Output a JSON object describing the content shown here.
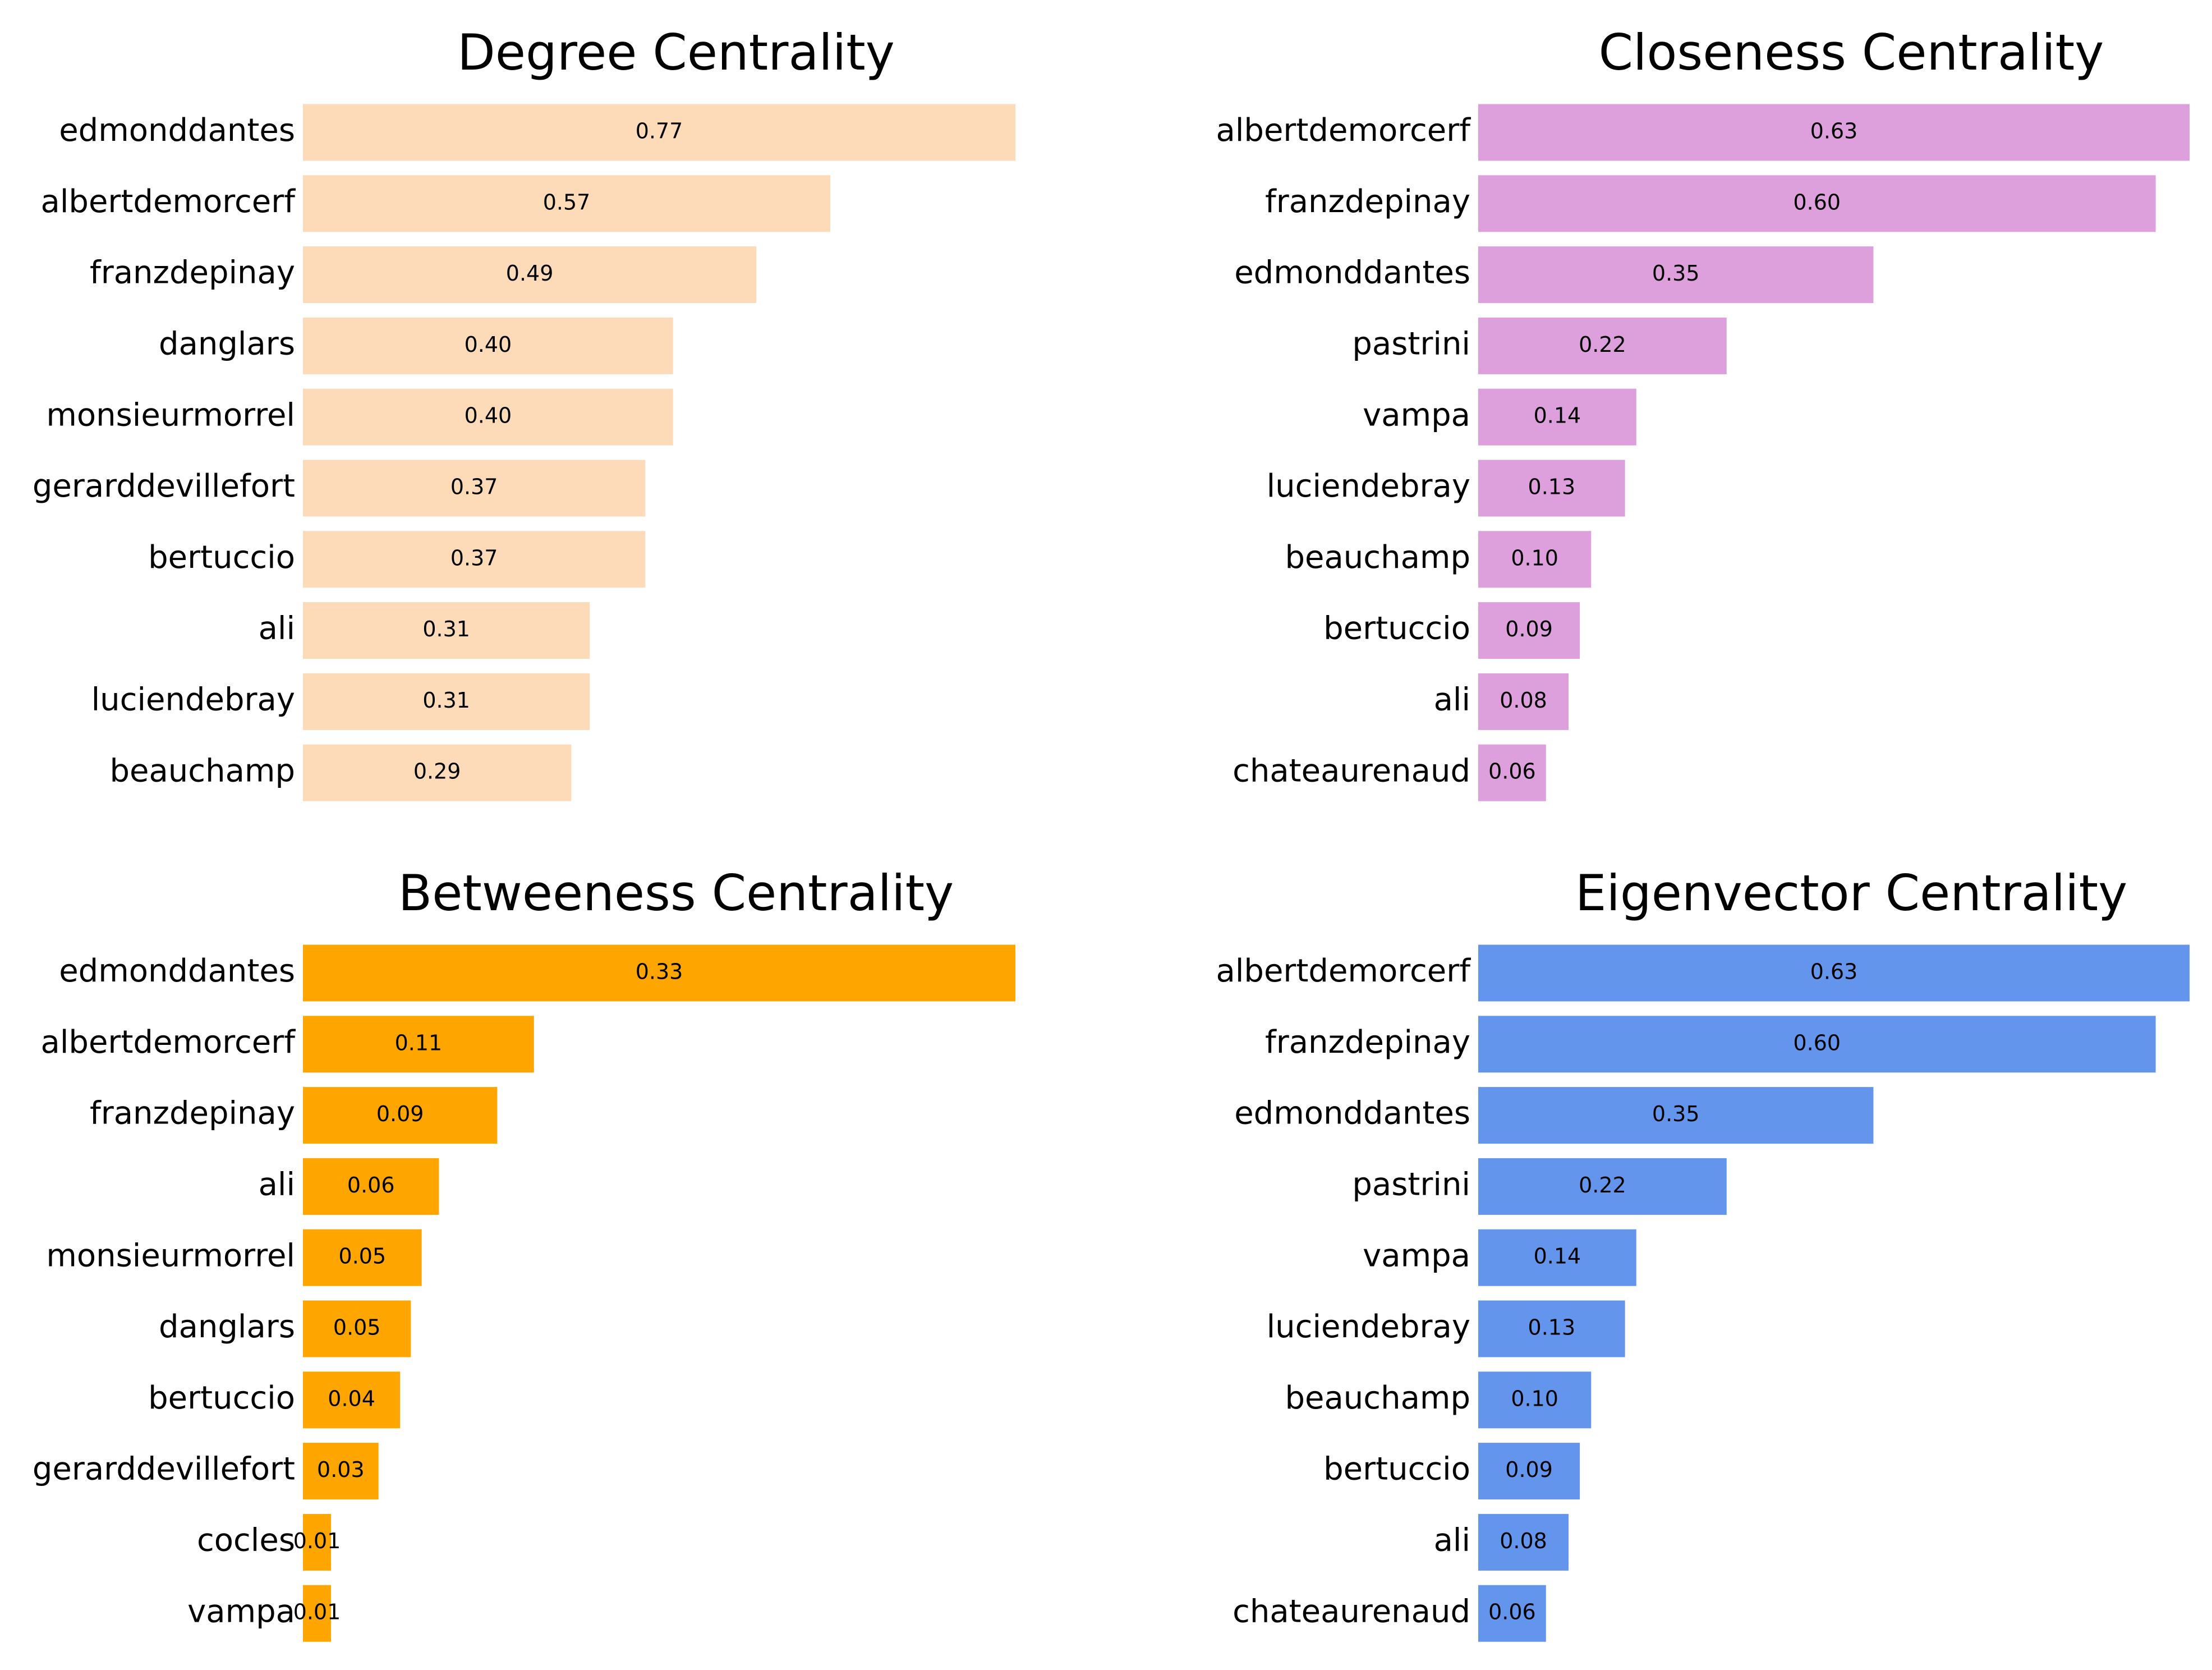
{
  "chart_data": [
    {
      "type": "bar",
      "orientation": "horizontal",
      "title": "Degree Centrality",
      "color": "#FDDBB9",
      "categories": [
        "edmonddantes",
        "albertdemorcerf",
        "franzdepinay",
        "danglars",
        "monsieurmorrel",
        "gerarddevillefort",
        "bertuccio",
        "ali",
        "luciendebray",
        "beauchamp"
      ],
      "values": [
        0.77,
        0.57,
        0.49,
        0.4,
        0.4,
        0.37,
        0.37,
        0.31,
        0.31,
        0.29
      ],
      "value_labels": [
        "0.77",
        "0.57",
        "0.49",
        "0.40",
        "0.40",
        "0.37",
        "0.37",
        "0.31",
        "0.31",
        "0.29"
      ],
      "xlim": [
        0,
        0.77
      ],
      "grid": false,
      "axes_visible": false
    },
    {
      "type": "bar",
      "orientation": "horizontal",
      "title": "Closeness Centrality",
      "color": "#DDA0DD",
      "categories": [
        "albertdemorcerf",
        "franzdepinay",
        "edmonddantes",
        "pastrini",
        "vampa",
        "luciendebray",
        "beauchamp",
        "bertuccio",
        "ali",
        "chateaurenaud"
      ],
      "values": [
        0.63,
        0.6,
        0.35,
        0.22,
        0.14,
        0.13,
        0.1,
        0.09,
        0.08,
        0.06
      ],
      "value_labels": [
        "0.63",
        "0.60",
        "0.35",
        "0.22",
        "0.14",
        "0.13",
        "0.10",
        "0.09",
        "0.08",
        "0.06"
      ],
      "xlim": [
        0,
        0.63
      ],
      "grid": false,
      "axes_visible": false
    },
    {
      "type": "bar",
      "orientation": "horizontal",
      "title": "Betweeness Centrality",
      "color": "#FFA500",
      "categories": [
        "edmonddantes",
        "albertdemorcerf",
        "franzdepinay",
        "ali",
        "monsieurmorrel",
        "danglars",
        "bertuccio",
        "gerarddevillefort",
        "cocles",
        "vampa"
      ],
      "values": [
        0.33,
        0.107,
        0.09,
        0.063,
        0.055,
        0.05,
        0.045,
        0.035,
        0.013,
        0.013
      ],
      "value_labels": [
        "0.33",
        "0.11",
        "0.09",
        "0.06",
        "0.05",
        "0.05",
        "0.04",
        "0.03",
        "0.01",
        "0.01"
      ],
      "xlim": [
        0,
        0.33
      ],
      "grid": false,
      "axes_visible": false
    },
    {
      "type": "bar",
      "orientation": "horizontal",
      "title": "Eigenvector Centrality",
      "color": "#6495ED",
      "categories": [
        "albertdemorcerf",
        "franzdepinay",
        "edmonddantes",
        "pastrini",
        "vampa",
        "luciendebray",
        "beauchamp",
        "bertuccio",
        "ali",
        "chateaurenaud"
      ],
      "values": [
        0.63,
        0.6,
        0.35,
        0.22,
        0.14,
        0.13,
        0.1,
        0.09,
        0.08,
        0.06
      ],
      "value_labels": [
        "0.63",
        "0.60",
        "0.35",
        "0.22",
        "0.14",
        "0.13",
        "0.10",
        "0.09",
        "0.08",
        "0.06"
      ],
      "xlim": [
        0,
        0.63
      ],
      "grid": false,
      "axes_visible": false
    }
  ]
}
